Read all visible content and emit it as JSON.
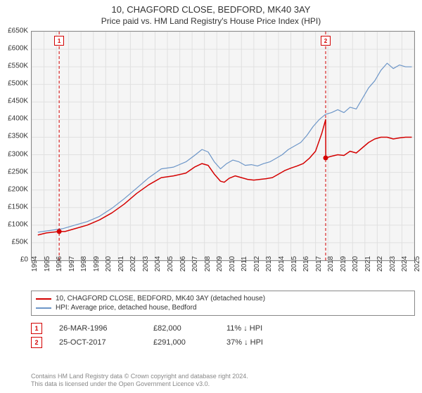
{
  "title": "10, CHAGFORD CLOSE, BEDFORD, MK40 3AY",
  "subtitle": "Price paid vs. HM Land Registry's House Price Index (HPI)",
  "chart": {
    "type": "line",
    "background_color": "#f5f5f5",
    "grid_color": "#e0e0e0",
    "border_color": "#888888",
    "title_fontsize": 13,
    "subtitle_fontsize": 12,
    "tick_fontsize": 10,
    "x": {
      "years": [
        1994,
        1995,
        1996,
        1997,
        1998,
        1999,
        2000,
        2001,
        2002,
        2003,
        2004,
        2005,
        2006,
        2007,
        2008,
        2009,
        2010,
        2011,
        2012,
        2013,
        2014,
        2015,
        2016,
        2017,
        2018,
        2019,
        2020,
        2021,
        2022,
        2023,
        2024,
        2025
      ],
      "min": 1994,
      "max": 2025,
      "rotation": -90
    },
    "y": {
      "min": 0,
      "max": 650000,
      "step": 50000,
      "prefix": "£",
      "suffix": "K",
      "divisor": 1000
    },
    "series": [
      {
        "name": "price_paid",
        "color": "#d40000",
        "width": 1.5,
        "data": [
          [
            1994.5,
            72000
          ],
          [
            1995.2,
            78000
          ],
          [
            1996.23,
            82000
          ],
          [
            1996.7,
            82000
          ],
          [
            1997.5,
            90000
          ],
          [
            1998.5,
            100000
          ],
          [
            1999.5,
            115000
          ],
          [
            2000.5,
            135000
          ],
          [
            2001.5,
            160000
          ],
          [
            2002.5,
            190000
          ],
          [
            2003.5,
            215000
          ],
          [
            2004.5,
            235000
          ],
          [
            2005.5,
            240000
          ],
          [
            2006.5,
            248000
          ],
          [
            2007.2,
            265000
          ],
          [
            2007.8,
            275000
          ],
          [
            2008.3,
            270000
          ],
          [
            2008.8,
            245000
          ],
          [
            2009.3,
            225000
          ],
          [
            2009.6,
            222000
          ],
          [
            2010.0,
            233000
          ],
          [
            2010.5,
            240000
          ],
          [
            2011.0,
            235000
          ],
          [
            2011.5,
            230000
          ],
          [
            2012.0,
            228000
          ],
          [
            2012.5,
            230000
          ],
          [
            2013.0,
            232000
          ],
          [
            2013.5,
            235000
          ],
          [
            2014.0,
            245000
          ],
          [
            2014.5,
            255000
          ],
          [
            2015.0,
            262000
          ],
          [
            2015.5,
            268000
          ],
          [
            2016.0,
            275000
          ],
          [
            2016.5,
            290000
          ],
          [
            2017.0,
            310000
          ],
          [
            2017.5,
            360000
          ],
          [
            2017.82,
            400000
          ],
          [
            2017.83,
            291000
          ],
          [
            2018.2,
            295000
          ],
          [
            2018.8,
            300000
          ],
          [
            2019.3,
            298000
          ],
          [
            2019.8,
            310000
          ],
          [
            2020.3,
            305000
          ],
          [
            2020.8,
            320000
          ],
          [
            2021.3,
            335000
          ],
          [
            2021.8,
            345000
          ],
          [
            2022.3,
            350000
          ],
          [
            2022.8,
            350000
          ],
          [
            2023.3,
            345000
          ],
          [
            2023.8,
            348000
          ],
          [
            2024.3,
            350000
          ],
          [
            2024.8,
            350000
          ]
        ]
      },
      {
        "name": "hpi",
        "color": "#6d96c8",
        "width": 1.2,
        "data": [
          [
            1994.5,
            80000
          ],
          [
            1995.5,
            85000
          ],
          [
            1996.5,
            90000
          ],
          [
            1997.5,
            100000
          ],
          [
            1998.5,
            110000
          ],
          [
            1999.5,
            125000
          ],
          [
            2000.5,
            148000
          ],
          [
            2001.5,
            175000
          ],
          [
            2002.5,
            205000
          ],
          [
            2003.5,
            235000
          ],
          [
            2004.5,
            260000
          ],
          [
            2005.5,
            265000
          ],
          [
            2006.5,
            280000
          ],
          [
            2007.2,
            298000
          ],
          [
            2007.8,
            315000
          ],
          [
            2008.3,
            308000
          ],
          [
            2008.8,
            280000
          ],
          [
            2009.3,
            260000
          ],
          [
            2009.8,
            275000
          ],
          [
            2010.3,
            285000
          ],
          [
            2010.8,
            280000
          ],
          [
            2011.3,
            270000
          ],
          [
            2011.8,
            272000
          ],
          [
            2012.3,
            268000
          ],
          [
            2012.8,
            275000
          ],
          [
            2013.3,
            280000
          ],
          [
            2013.8,
            290000
          ],
          [
            2014.3,
            300000
          ],
          [
            2014.8,
            315000
          ],
          [
            2015.3,
            325000
          ],
          [
            2015.8,
            335000
          ],
          [
            2016.3,
            355000
          ],
          [
            2016.8,
            380000
          ],
          [
            2017.3,
            400000
          ],
          [
            2017.8,
            415000
          ],
          [
            2018.3,
            420000
          ],
          [
            2018.8,
            428000
          ],
          [
            2019.3,
            420000
          ],
          [
            2019.8,
            435000
          ],
          [
            2020.3,
            430000
          ],
          [
            2020.8,
            460000
          ],
          [
            2021.3,
            490000
          ],
          [
            2021.8,
            510000
          ],
          [
            2022.3,
            540000
          ],
          [
            2022.8,
            560000
          ],
          [
            2023.3,
            545000
          ],
          [
            2023.8,
            555000
          ],
          [
            2024.3,
            550000
          ],
          [
            2024.8,
            550000
          ]
        ]
      }
    ],
    "markers": [
      {
        "label": "1",
        "year": 1996.23,
        "value": 82000,
        "dot_color": "#d40000"
      },
      {
        "label": "2",
        "year": 2017.82,
        "value": 291000,
        "dot_color": "#d40000"
      }
    ],
    "marker_line_color": "#d40000",
    "marker_line_dash": "4 3"
  },
  "legend": {
    "items": [
      {
        "color": "#d40000",
        "label": "10, CHAGFORD CLOSE, BEDFORD, MK40 3AY (detached house)"
      },
      {
        "color": "#6d96c8",
        "label": "HPI: Average price, detached house, Bedford"
      }
    ]
  },
  "transactions": [
    {
      "marker": "1",
      "date": "26-MAR-1996",
      "price": "£82,000",
      "delta": "11% ↓ HPI"
    },
    {
      "marker": "2",
      "date": "25-OCT-2017",
      "price": "£291,000",
      "delta": "37% ↓ HPI"
    }
  ],
  "credits": {
    "line1": "Contains HM Land Registry data © Crown copyright and database right 2024.",
    "line2": "This data is licensed under the Open Government Licence v3.0."
  }
}
